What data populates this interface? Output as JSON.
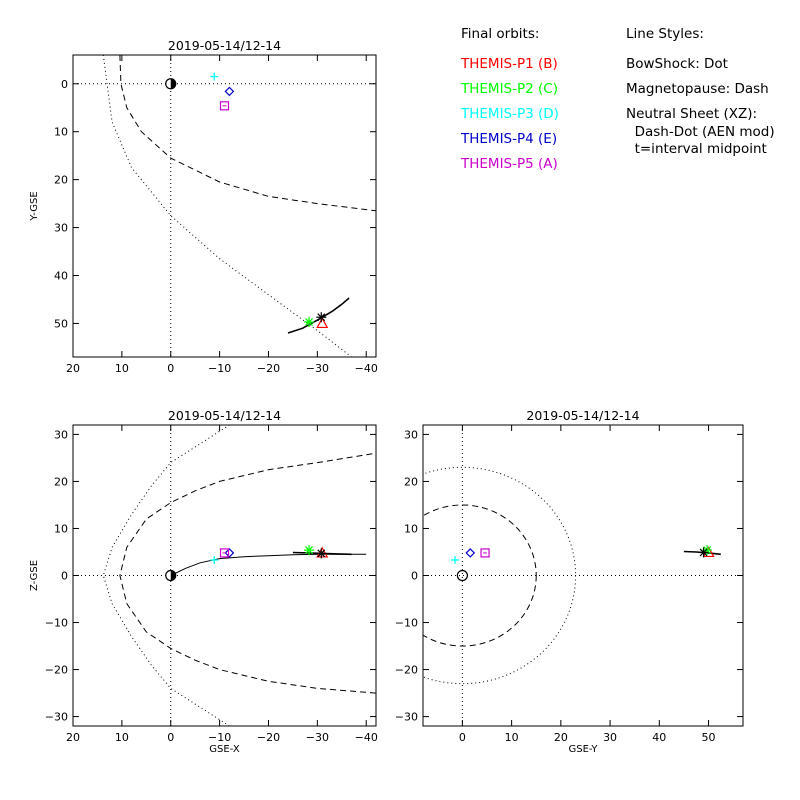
{
  "legend": {
    "orbits_heading": "Final orbits:",
    "styles_heading": "Line Styles:",
    "probes": [
      {
        "label": "THEMIS-P1 (B)",
        "color": "#ff0000"
      },
      {
        "label": "THEMIS-P2 (C)",
        "color": "#00ff00"
      },
      {
        "label": "THEMIS-P3 (D)",
        "color": "#00ffff"
      },
      {
        "label": "THEMIS-P4 (E)",
        "color": "#0000cc"
      },
      {
        "label": "THEMIS-P5 (A)",
        "color": "#cc00cc"
      }
    ],
    "styles": [
      "BowShock: Dot",
      "Magnetopause: Dash",
      "Neutral Sheet (XZ):",
      "  Dash-Dot (AEN mod)",
      "  t=interval midpoint"
    ]
  },
  "chart_data": [
    {
      "type": "line",
      "title": "2019-05-14/12-14",
      "xlabel": "",
      "ylabel": "Y-GSE",
      "xlim": [
        20,
        -42
      ],
      "ylim": [
        57,
        -6
      ],
      "xticks": [
        20,
        10,
        0,
        -10,
        -20,
        -30,
        -40
      ],
      "xticklabels": [
        "20",
        "10",
        "0",
        "−10",
        "−20",
        "−30",
        "−40"
      ],
      "yticks": [
        0,
        10,
        20,
        30,
        40,
        50
      ],
      "yticklabels": [
        "0",
        "10",
        "20",
        "30",
        "40",
        "50"
      ],
      "series": [
        {
          "style": "bowshock-dotted",
          "x": [
            13.8,
            12,
            8,
            0,
            -10,
            -20,
            -30,
            -37
          ],
          "y": [
            -6,
            8,
            17.5,
            27.5,
            36.5,
            44,
            51.5,
            57
          ]
        },
        {
          "style": "magnetopause-dashed",
          "x": [
            10.4,
            10.2,
            9,
            6,
            0,
            -10,
            -20,
            -30,
            -42
          ],
          "y": [
            -6,
            0,
            5,
            10,
            15.5,
            20.5,
            23.5,
            25,
            26.5
          ]
        },
        {
          "style": "orbit-solid",
          "x": [
            -24,
            -27,
            -30,
            -33,
            -35,
            -36.5
          ],
          "y": [
            52,
            51,
            49.3,
            47.5,
            46,
            44.7
          ]
        }
      ],
      "markers": [
        {
          "probe": "P1",
          "symbol": "triangle",
          "color": "#ff0000",
          "x": -31,
          "y": 50
        },
        {
          "probe": "P2",
          "symbol": "asterisk",
          "color": "#00ff00",
          "x": -28.3,
          "y": 49.7
        },
        {
          "probe": "P3",
          "symbol": "plus",
          "color": "#00ffff",
          "x": -8.9,
          "y": -1.5
        },
        {
          "probe": "P4",
          "symbol": "diamond",
          "color": "#0000cc",
          "x": -12,
          "y": 1.6
        },
        {
          "probe": "P5",
          "symbol": "square",
          "color": "#cc00cc",
          "x": -11,
          "y": 4.6
        },
        {
          "probe": "midpoint",
          "symbol": "asterisk",
          "color": "#000000",
          "x": -30.8,
          "y": 48.7
        },
        {
          "probe": "earth",
          "symbol": "half-circle",
          "color": "#000000",
          "x": 0,
          "y": 0
        }
      ]
    },
    {
      "type": "line",
      "title": "2019-05-14/12-14",
      "xlabel": "GSE-X",
      "ylabel": "Z-GSE",
      "xlim": [
        20,
        -42
      ],
      "ylim": [
        -32,
        32
      ],
      "xticks": [
        20,
        10,
        0,
        -10,
        -20,
        -30,
        -40
      ],
      "xticklabels": [
        "20",
        "10",
        "0",
        "−10",
        "−20",
        "−30",
        "−40"
      ],
      "yticks": [
        -30,
        -20,
        -10,
        0,
        10,
        20,
        30
      ],
      "yticklabels": [
        "−30",
        "−20",
        "−10",
        "0",
        "10",
        "20",
        "30"
      ],
      "series": [
        {
          "style": "bowshock-dotted",
          "x": [
            -12,
            -6,
            0,
            4,
            8,
            12,
            13.8,
            12,
            8,
            4,
            0,
            -6,
            -12
          ],
          "y": [
            -32,
            -28,
            -24,
            -19,
            -13,
            -6,
            0,
            6,
            13,
            19,
            24,
            28,
            32
          ]
        },
        {
          "style": "magnetopause-dashed",
          "x": [
            -42,
            -30,
            -20,
            -10,
            -5,
            0,
            5,
            9,
            10.4,
            9,
            5,
            0,
            -5,
            -10,
            -20,
            -30,
            -42
          ],
          "y": [
            -25,
            -24,
            -22.5,
            -20,
            -18,
            -15.5,
            -12,
            -6,
            0,
            6,
            12,
            15.5,
            18,
            20,
            22.5,
            24,
            26
          ]
        },
        {
          "style": "neutral-sheet-solid",
          "x": [
            0,
            -3,
            -6,
            -10,
            -15,
            -20,
            -25,
            -30,
            -35,
            -40
          ],
          "y": [
            0,
            1.5,
            2.7,
            3.6,
            4.0,
            4.2,
            4.4,
            4.5,
            4.5,
            4.5
          ]
        },
        {
          "style": "orbit-solid",
          "x": [
            -25,
            -28,
            -31,
            -34,
            -37
          ],
          "y": [
            4.9,
            4.8,
            4.7,
            4.6,
            4.5
          ]
        }
      ],
      "markers": [
        {
          "probe": "P1",
          "symbol": "triangle",
          "color": "#ff0000",
          "x": -31,
          "y": 4.8
        },
        {
          "probe": "P2",
          "symbol": "asterisk",
          "color": "#00ff00",
          "x": -28.3,
          "y": 5.4
        },
        {
          "probe": "P3",
          "symbol": "plus",
          "color": "#00ffff",
          "x": -8.9,
          "y": 3.3
        },
        {
          "probe": "P4",
          "symbol": "diamond",
          "color": "#0000cc",
          "x": -12,
          "y": 4.8
        },
        {
          "probe": "P5",
          "symbol": "square",
          "color": "#cc00cc",
          "x": -11,
          "y": 4.8
        },
        {
          "probe": "midpoint",
          "symbol": "asterisk",
          "color": "#000000",
          "x": -30.8,
          "y": 4.7
        },
        {
          "probe": "earth",
          "symbol": "half-circle",
          "color": "#000000",
          "x": 0,
          "y": 0
        }
      ]
    },
    {
      "type": "line",
      "title": "2019-05-14/12-14",
      "xlabel": "GSE-Y",
      "ylabel": "",
      "xlim": [
        -8,
        57
      ],
      "ylim": [
        -32,
        32
      ],
      "xticks": [
        0,
        10,
        20,
        30,
        40,
        50
      ],
      "xticklabels": [
        "0",
        "10",
        "20",
        "30",
        "40",
        "50"
      ],
      "yticks": [
        -30,
        -20,
        -10,
        0,
        10,
        20,
        30
      ],
      "yticklabels": [
        "−30",
        "−20",
        "−10",
        "0",
        "10",
        "20",
        "30"
      ],
      "circles": [
        {
          "style": "bowshock-dotted",
          "cx": 0,
          "cy": 0,
          "r": 23
        },
        {
          "style": "magnetopause-dashed",
          "cx": 0,
          "cy": 0,
          "r": 15
        }
      ],
      "series": [
        {
          "style": "orbit-solid",
          "x": [
            45,
            47.5,
            50,
            52.5
          ],
          "y": [
            5.1,
            5.0,
            4.8,
            4.5
          ]
        }
      ],
      "markers": [
        {
          "probe": "P1",
          "symbol": "triangle",
          "color": "#ff0000",
          "x": 50,
          "y": 4.9
        },
        {
          "probe": "P2",
          "symbol": "asterisk",
          "color": "#00ff00",
          "x": 49.7,
          "y": 5.4
        },
        {
          "probe": "P3",
          "symbol": "plus",
          "color": "#00ffff",
          "x": -1.5,
          "y": 3.3
        },
        {
          "probe": "P4",
          "symbol": "diamond",
          "color": "#0000cc",
          "x": 1.6,
          "y": 4.8
        },
        {
          "probe": "P5",
          "symbol": "square",
          "color": "#cc00cc",
          "x": 4.6,
          "y": 4.8
        },
        {
          "probe": "midpoint",
          "symbol": "asterisk",
          "color": "#000000",
          "x": 49.0,
          "y": 4.9
        },
        {
          "probe": "earth",
          "symbol": "circle",
          "color": "#000000",
          "x": 0,
          "y": 0
        }
      ]
    }
  ]
}
